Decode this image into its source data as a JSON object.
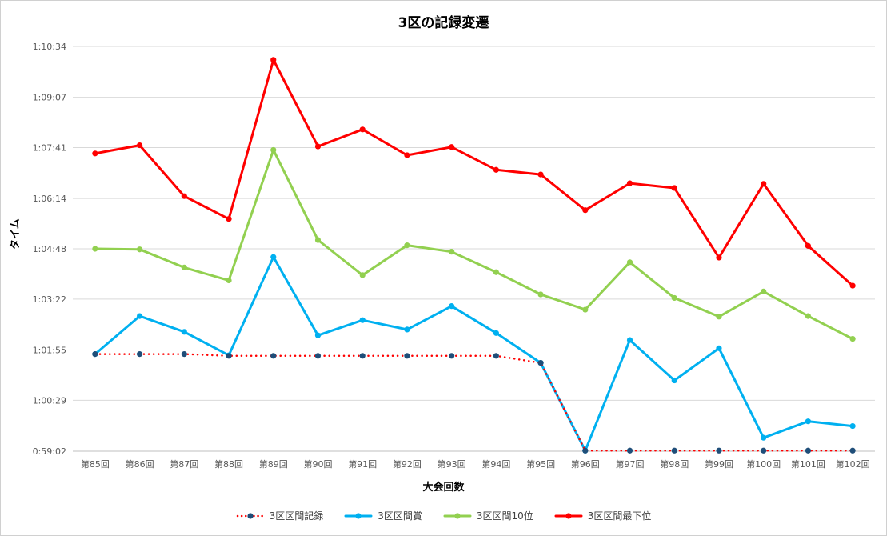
{
  "chart_data": {
    "type": "line",
    "title": "3区の記録変遷",
    "xlabel": "大会回数",
    "ylabel": "タイム",
    "categories": [
      "第85回",
      "第86回",
      "第87回",
      "第88回",
      "第89回",
      "第90回",
      "第91回",
      "第92回",
      "第93回",
      "第94回",
      "第95回",
      "第96回",
      "第97回",
      "第98回",
      "第99回",
      "第100回",
      "第101回",
      "第102回"
    ],
    "y_ticks": [
      "0:59:02",
      "1:00:29",
      "1:01:55",
      "1:03:22",
      "1:04:48",
      "1:06:14",
      "1:07:41",
      "1:09:07",
      "1:10:34"
    ],
    "ylim": [
      "0:59:02",
      "1:10:34"
    ],
    "grid": true,
    "legend_position": "bottom",
    "series": [
      {
        "name": "3区区間記録",
        "color": "#ff0000",
        "marker_color": "#1f4e79",
        "style": "dotted",
        "values": [
          "1:01:48",
          "1:01:48",
          "1:01:48",
          "1:01:45",
          "1:01:45",
          "1:01:45",
          "1:01:45",
          "1:01:45",
          "1:01:45",
          "1:01:45",
          "1:01:33",
          "0:59:03",
          "0:59:03",
          "0:59:03",
          "0:59:03",
          "0:59:03",
          "0:59:03",
          "0:59:03"
        ]
      },
      {
        "name": "3区区間賞",
        "color": "#00b0f0",
        "style": "solid",
        "values": [
          "1:01:48",
          "1:02:53",
          "1:02:26",
          "1:01:46",
          "1:04:34",
          "1:02:20",
          "1:02:46",
          "1:02:30",
          "1:03:10",
          "1:02:24",
          "1:01:33",
          "0:59:03",
          "1:02:12",
          "1:01:03",
          "1:01:58",
          "0:59:25",
          "0:59:53",
          "0:59:45"
        ]
      },
      {
        "name": "3区区間10位",
        "color": "#92d050",
        "style": "solid",
        "values": [
          "1:04:48",
          "1:04:47",
          "1:04:16",
          "1:03:54",
          "1:07:37",
          "1:05:03",
          "1:04:03",
          "1:04:54",
          "1:04:43",
          "1:04:08",
          "1:03:30",
          "1:03:04",
          "1:04:25",
          "1:03:24",
          "1:02:52",
          "1:03:35",
          "1:02:53",
          "1:02:14"
        ]
      },
      {
        "name": "3区区間最下位",
        "color": "#ff0000",
        "style": "solid",
        "values": [
          "1:07:31",
          "1:07:45",
          "1:06:18",
          "1:05:39",
          "1:10:11",
          "1:07:43",
          "1:08:12",
          "1:07:28",
          "1:07:42",
          "1:07:03",
          "1:06:55",
          "1:05:54",
          "1:06:40",
          "1:06:32",
          "1:04:33",
          "1:06:39",
          "1:04:53",
          "1:03:45"
        ]
      }
    ]
  }
}
